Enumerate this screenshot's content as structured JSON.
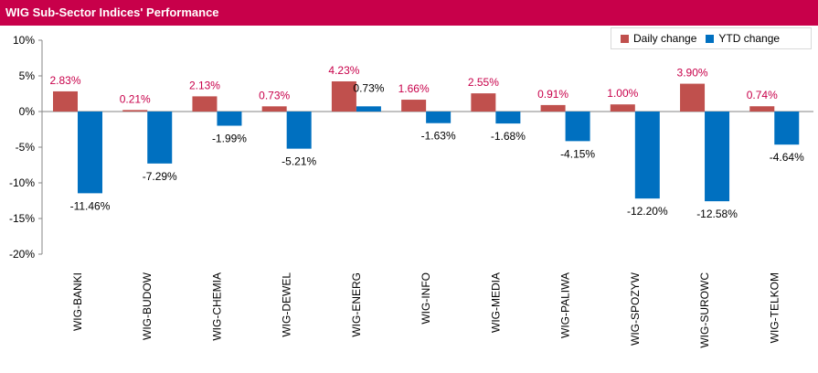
{
  "title": "WIG Sub-Sector Indices' Performance",
  "colors": {
    "title_bg": "#c8004a",
    "daily": "#c0504d",
    "ytd": "#0070c0",
    "daily_label": "#c8004a",
    "ytd_label": "#000000"
  },
  "chart_data": {
    "type": "bar",
    "title": "WIG Sub-Sector Indices' Performance",
    "categories": [
      "WIG-BANKI",
      "WIG-BUDOW",
      "WIG-CHEMIA",
      "WIG-DEWEL",
      "WIG-ENERG",
      "WIG-INFO",
      "WIG-MEDIA",
      "WIG-PALIWA",
      "WIG-SPOZYW",
      "WIG-SUROWC",
      "WIG-TELKOM"
    ],
    "series": [
      {
        "name": "Daily change",
        "values": [
          2.83,
          0.21,
          2.13,
          0.73,
          4.23,
          1.66,
          2.55,
          0.91,
          1.0,
          3.9,
          0.74
        ],
        "labels": [
          "2.83%",
          "0.21%",
          "2.13%",
          "0.73%",
          "4.23%",
          "1.66%",
          "2.55%",
          "0.91%",
          "1.00%",
          "3.90%",
          "0.74%"
        ]
      },
      {
        "name": "YTD change",
        "values": [
          -11.46,
          -7.29,
          -1.99,
          -5.21,
          0.73,
          -1.63,
          -1.68,
          -4.15,
          -12.2,
          -12.58,
          -4.64
        ],
        "labels": [
          "-11.46%",
          "-7.29%",
          "-1.99%",
          "-5.21%",
          "0.73%",
          "-1.63%",
          "-1.68%",
          "-4.15%",
          "-12.20%",
          "-12.58%",
          "-4.64%"
        ]
      }
    ],
    "yticks": [
      10,
      5,
      0,
      -5,
      -10,
      -15,
      -20
    ],
    "ytick_labels": [
      "10%",
      "5%",
      "0%",
      "-5%",
      "-10%",
      "-15%",
      "-20%"
    ],
    "ylim": [
      -20,
      10
    ],
    "grid": false,
    "legend_position": "top-right"
  }
}
